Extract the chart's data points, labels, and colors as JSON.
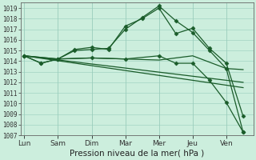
{
  "xlabel": "Pression niveau de la mer( hPa )",
  "background_color": "#cceedd",
  "grid_color": "#99ccbb",
  "line_color": "#1a5c2a",
  "ylim": [
    1007,
    1019.5
  ],
  "yticks": [
    1007,
    1008,
    1009,
    1010,
    1011,
    1012,
    1013,
    1014,
    1015,
    1016,
    1017,
    1018,
    1019
  ],
  "xtick_labels": [
    "Lun",
    "Sam",
    "Dim",
    "Mar",
    "Mer",
    "Jeu",
    "Ven"
  ],
  "xtick_positions": [
    0,
    1,
    2,
    3,
    4,
    5,
    6
  ],
  "xlim": [
    -0.1,
    6.8
  ],
  "series": [
    {
      "x": [
        0,
        0.5,
        1,
        1.5,
        2,
        2.5,
        3,
        3.5,
        4,
        4.5,
        5,
        5.5,
        6,
        6.5
      ],
      "y": [
        1014.5,
        1013.8,
        1014.2,
        1015.0,
        1015.1,
        1015.2,
        1017.0,
        1018.1,
        1019.2,
        1017.8,
        1016.7,
        1015.0,
        1013.3,
        1007.3
      ],
      "marker": "D",
      "markersize": 2.5
    },
    {
      "x": [
        0,
        0.5,
        1,
        1.5,
        2,
        2.5,
        3,
        3.5,
        4,
        4.5,
        5,
        5.5,
        6,
        6.5
      ],
      "y": [
        1014.5,
        1013.8,
        1014.2,
        1015.1,
        1015.3,
        1015.1,
        1017.3,
        1018.0,
        1019.0,
        1016.6,
        1017.1,
        1015.2,
        1013.8,
        1008.8
      ],
      "marker": "D",
      "markersize": 2.5
    },
    {
      "x": [
        0,
        1,
        2,
        3,
        4,
        5,
        6,
        6.5
      ],
      "y": [
        1014.5,
        1014.2,
        1014.3,
        1014.2,
        1014.1,
        1014.5,
        1013.3,
        1013.2
      ],
      "marker": null,
      "markersize": 0
    },
    {
      "x": [
        0,
        1,
        2,
        3,
        4,
        4.5,
        5,
        5.5,
        6,
        6.5
      ],
      "y": [
        1014.5,
        1014.2,
        1014.3,
        1014.2,
        1014.5,
        1013.8,
        1013.8,
        1012.2,
        1010.1,
        1007.3
      ],
      "marker": "D",
      "markersize": 2.5
    },
    {
      "x": [
        0,
        6.5
      ],
      "y": [
        1014.5,
        1012.0
      ],
      "marker": null,
      "markersize": 0
    },
    {
      "x": [
        0,
        6.5
      ],
      "y": [
        1014.5,
        1011.5
      ],
      "marker": null,
      "markersize": 0
    }
  ]
}
